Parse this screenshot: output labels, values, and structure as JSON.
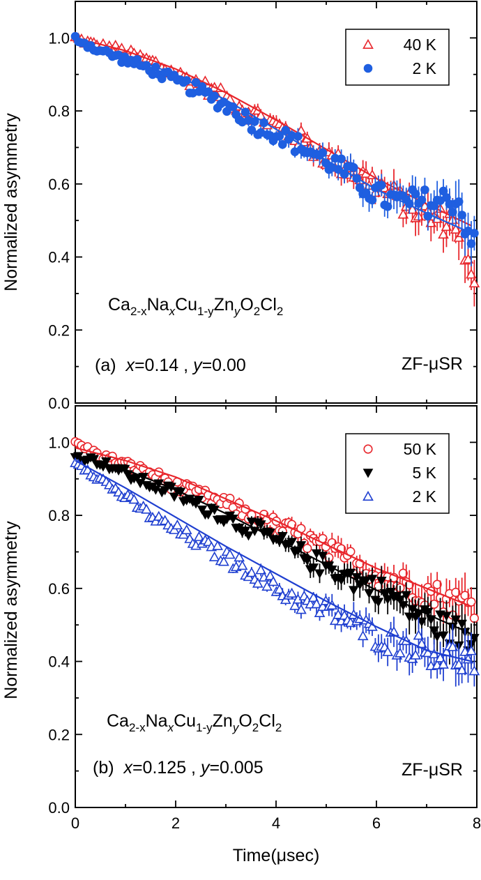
{
  "figure": {
    "xlabel": "Time(μsec)",
    "ylabel": "Normalized asymmetry"
  },
  "chart_data": [
    {
      "type": "scatter",
      "panel": "a",
      "xlabel": "Time(μsec)",
      "ylabel": "Normalized asymmetry",
      "xlim": [
        0,
        8
      ],
      "ylim": [
        0,
        1.1
      ],
      "xticks": [
        "0",
        "2",
        "4",
        "6",
        "8"
      ],
      "yticks": [
        "0.0",
        "0.2",
        "0.4",
        "0.6",
        "0.8",
        "1.0"
      ],
      "legend_position": "top-right",
      "compound": {
        "pre": "Ca",
        "sub1": "2-x",
        "mid1": "Na",
        "sub2": "x",
        "mid2": "Cu",
        "sub3": "1-y",
        "mid3": "Zn",
        "sub4": "y",
        "mid4": "O",
        "sub5": "2",
        "mid5": "Cl",
        "sub6": "2"
      },
      "label": {
        "tag": "(a)",
        "xvar": "x",
        "xval": "=0.14 ,",
        "yvar": "y",
        "yval": "=0.00"
      },
      "method": "ZF-μSR",
      "series": [
        {
          "name": "40 K",
          "color": "#e8262c",
          "marker": "triangle-open",
          "x": [
            0.0,
            0.4,
            0.8,
            1.2,
            1.6,
            2.0,
            2.4,
            2.8,
            3.2,
            3.6,
            4.0,
            4.4,
            4.8,
            5.2,
            5.6,
            6.0,
            6.4,
            6.8,
            7.2,
            7.6,
            7.95
          ],
          "y": [
            1.0,
            0.98,
            0.97,
            0.95,
            0.93,
            0.9,
            0.88,
            0.85,
            0.82,
            0.79,
            0.76,
            0.73,
            0.69,
            0.66,
            0.63,
            0.6,
            0.56,
            0.53,
            0.5,
            0.5,
            0.3
          ],
          "fit": [
            [
              0.0,
              1.0
            ],
            [
              1.0,
              0.965
            ],
            [
              2.0,
              0.915
            ],
            [
              3.0,
              0.85
            ],
            [
              4.0,
              0.775
            ],
            [
              5.0,
              0.695
            ],
            [
              6.0,
              0.615
            ],
            [
              7.0,
              0.545
            ],
            [
              7.9,
              0.485
            ]
          ]
        },
        {
          "name": "2 K",
          "color": "#1f5fe0",
          "marker": "circle-filled",
          "x": [
            0.0,
            0.4,
            0.8,
            1.2,
            1.6,
            2.0,
            2.4,
            2.8,
            3.2,
            3.6,
            4.0,
            4.4,
            4.8,
            5.2,
            5.6,
            6.0,
            6.4,
            6.8,
            7.2,
            7.6,
            7.95
          ],
          "y": [
            1.0,
            0.97,
            0.95,
            0.93,
            0.91,
            0.88,
            0.86,
            0.83,
            0.8,
            0.76,
            0.74,
            0.71,
            0.68,
            0.65,
            0.61,
            0.57,
            0.55,
            0.55,
            0.55,
            0.56,
            0.43
          ],
          "fit": [
            [
              0.0,
              0.985
            ],
            [
              1.0,
              0.95
            ],
            [
              2.0,
              0.9
            ],
            [
              3.0,
              0.83
            ],
            [
              4.0,
              0.75
            ],
            [
              5.0,
              0.665
            ],
            [
              6.0,
              0.585
            ],
            [
              7.0,
              0.52
            ],
            [
              7.9,
              0.465
            ]
          ]
        }
      ]
    },
    {
      "type": "scatter",
      "panel": "b",
      "xlabel": "Time(μsec)",
      "ylabel": "Normalized asymmetry",
      "xlim": [
        0,
        8
      ],
      "ylim": [
        0,
        1.1
      ],
      "xticks": [
        "0",
        "2",
        "4",
        "6",
        "8"
      ],
      "yticks": [
        "0.0",
        "0.2",
        "0.4",
        "0.6",
        "0.8",
        "1.0"
      ],
      "legend_position": "top-right",
      "compound": {
        "pre": "Ca",
        "sub1": "2-x",
        "mid1": "Na",
        "sub2": "x",
        "mid2": "Cu",
        "sub3": "1-y",
        "mid3": "Zn",
        "sub4": "y",
        "mid4": "O",
        "sub5": "2",
        "mid5": "Cl",
        "sub6": "2"
      },
      "label": {
        "tag": "(b)",
        "xvar": "x",
        "xval": "=0.125 ,",
        "yvar": "y",
        "yval": "=0.005"
      },
      "method": "ZF-μSR",
      "series": [
        {
          "name": "50 K",
          "color": "#e8262c",
          "marker": "circle-open",
          "x": [
            0.0,
            0.4,
            0.8,
            1.2,
            1.6,
            2.0,
            2.4,
            2.8,
            3.2,
            3.6,
            4.0,
            4.4,
            4.8,
            5.2,
            5.6,
            6.0,
            6.4,
            6.8,
            7.2,
            7.6,
            7.9
          ],
          "y": [
            1.0,
            0.97,
            0.95,
            0.93,
            0.91,
            0.88,
            0.86,
            0.84,
            0.82,
            0.79,
            0.77,
            0.75,
            0.72,
            0.69,
            0.67,
            0.64,
            0.62,
            0.6,
            0.58,
            0.56,
            0.56
          ],
          "fit": [
            [
              0.0,
              0.985
            ],
            [
              1.0,
              0.95
            ],
            [
              2.0,
              0.905
            ],
            [
              3.0,
              0.845
            ],
            [
              4.0,
              0.785
            ],
            [
              5.0,
              0.72
            ],
            [
              6.0,
              0.655
            ],
            [
              7.0,
              0.6
            ],
            [
              7.9,
              0.55
            ]
          ]
        },
        {
          "name": "5 K",
          "color": "#000000",
          "marker": "triangle-down-filled",
          "x": [
            0.0,
            0.4,
            0.8,
            1.2,
            1.6,
            2.0,
            2.4,
            2.8,
            3.2,
            3.6,
            4.0,
            4.4,
            4.8,
            5.2,
            5.6,
            6.0,
            6.4,
            6.8,
            7.2,
            7.6,
            7.9
          ],
          "y": [
            0.96,
            0.95,
            0.93,
            0.9,
            0.88,
            0.86,
            0.83,
            0.81,
            0.78,
            0.76,
            0.73,
            0.7,
            0.67,
            0.65,
            0.62,
            0.6,
            0.57,
            0.53,
            0.5,
            0.48,
            0.45
          ],
          "fit": [
            [
              0.0,
              0.965
            ],
            [
              1.0,
              0.925
            ],
            [
              2.0,
              0.87
            ],
            [
              3.0,
              0.805
            ],
            [
              4.0,
              0.735
            ],
            [
              5.0,
              0.665
            ],
            [
              6.0,
              0.595
            ],
            [
              7.0,
              0.53
            ],
            [
              7.9,
              0.475
            ]
          ]
        },
        {
          "name": "2 K",
          "color": "#1f3fd0",
          "marker": "triangle-open",
          "x": [
            0.0,
            0.4,
            0.8,
            1.2,
            1.6,
            2.0,
            2.4,
            2.8,
            3.2,
            3.6,
            4.0,
            4.4,
            4.8,
            5.2,
            5.6,
            6.0,
            6.4,
            6.8,
            7.2,
            7.6,
            7.9
          ],
          "y": [
            0.95,
            0.91,
            0.87,
            0.83,
            0.79,
            0.76,
            0.73,
            0.7,
            0.67,
            0.64,
            0.6,
            0.57,
            0.55,
            0.53,
            0.5,
            0.47,
            0.45,
            0.44,
            0.42,
            0.41,
            0.4
          ],
          "fit": [
            [
              0.0,
              0.95
            ],
            [
              1.0,
              0.875
            ],
            [
              2.0,
              0.795
            ],
            [
              3.0,
              0.715
            ],
            [
              4.0,
              0.64
            ],
            [
              5.0,
              0.565
            ],
            [
              6.0,
              0.495
            ],
            [
              7.0,
              0.43
            ],
            [
              7.9,
              0.4
            ]
          ]
        }
      ]
    }
  ]
}
